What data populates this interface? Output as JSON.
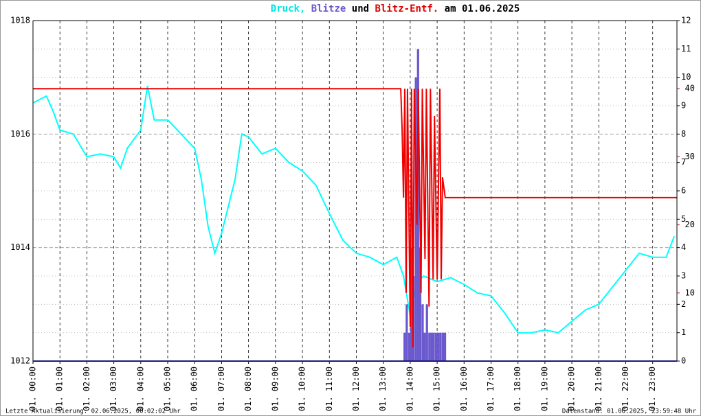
{
  "chart_data": {
    "type": "line",
    "title_parts": [
      {
        "text": "Druck,",
        "color": "#00e5e5"
      },
      {
        "text": "Blitze",
        "color": "#6a5acd"
      },
      {
        "text": "und",
        "color": "#000000"
      },
      {
        "text": "Blitz-Entf.",
        "color": "#dd0000"
      },
      {
        "text": "am 01.06.2025",
        "color": "#000000"
      }
    ],
    "footer_left": "Letzte Aktualisierung: 02.06.2025, 00:02:02 Uhr",
    "footer_right": "Datenstand: 01.06.2025, 23:59:48 Uhr",
    "xlim": [
      0,
      23.9
    ],
    "xticks": [
      {
        "value": 0,
        "label": "01. 00:00"
      },
      {
        "value": 1,
        "label": "01. 01:00"
      },
      {
        "value": 2,
        "label": "01. 02:00"
      },
      {
        "value": 3,
        "label": "01. 03:00"
      },
      {
        "value": 4,
        "label": "01. 04:00"
      },
      {
        "value": 5,
        "label": "01. 05:00"
      },
      {
        "value": 6,
        "label": "01. 06:00"
      },
      {
        "value": 7,
        "label": "01. 07:00"
      },
      {
        "value": 8,
        "label": "01. 08:00"
      },
      {
        "value": 9,
        "label": "01. 09:00"
      },
      {
        "value": 10,
        "label": "01. 10:00"
      },
      {
        "value": 11,
        "label": "01. 11:00"
      },
      {
        "value": 12,
        "label": "01. 12:00"
      },
      {
        "value": 13,
        "label": "01. 13:00"
      },
      {
        "value": 14,
        "label": "01. 14:00"
      },
      {
        "value": 15,
        "label": "01. 15:00"
      },
      {
        "value": 16,
        "label": "01. 16:00"
      },
      {
        "value": 17,
        "label": "01. 17:00"
      },
      {
        "value": 18,
        "label": "01. 18:00"
      },
      {
        "value": 19,
        "label": "01. 19:00"
      },
      {
        "value": 20,
        "label": "01. 20:00"
      },
      {
        "value": 21,
        "label": "01. 21:00"
      },
      {
        "value": 22,
        "label": "01. 22:00"
      },
      {
        "value": 23,
        "label": "01. 23:00"
      }
    ],
    "ylim": [
      1012,
      1018
    ],
    "yticks": [
      1012,
      1014,
      1016,
      1018
    ],
    "y2lim": [
      0,
      12
    ],
    "y2ticks": [
      0,
      1,
      2,
      3,
      4,
      5,
      6,
      7,
      8,
      9,
      10,
      11,
      12
    ],
    "y3lim": [
      0,
      50
    ],
    "y3ticks": [
      10,
      20,
      30,
      40
    ],
    "y3color": "#dd0000",
    "grid": true,
    "series": [
      {
        "type": "line",
        "axis": "y",
        "color": "#00ffff",
        "x": [
          0,
          0.5,
          0.75,
          1,
          1.5,
          2,
          2.5,
          3,
          3.25,
          3.5,
          4,
          4.25,
          4.5,
          5,
          5.5,
          6,
          6.25,
          6.5,
          6.75,
          7,
          7.5,
          7.75,
          8,
          8.5,
          9,
          9.5,
          10,
          10.5,
          11,
          11.5,
          12,
          12.5,
          13,
          13.5,
          13.75,
          14,
          14.25,
          14.5,
          15,
          15.5,
          16,
          16.5,
          17,
          17.5,
          18,
          18.5,
          19,
          19.5,
          20,
          20.5,
          21,
          21.5,
          22,
          22.5,
          23,
          23.5,
          23.8
        ],
        "values": [
          1016.55,
          1016.67,
          1016.4,
          1016.07,
          1016.0,
          1015.6,
          1015.65,
          1015.6,
          1015.4,
          1015.75,
          1016.07,
          1016.85,
          1016.25,
          1016.25,
          1016.0,
          1015.75,
          1015.2,
          1014.37,
          1013.9,
          1014.25,
          1015.2,
          1016.0,
          1015.95,
          1015.65,
          1015.75,
          1015.5,
          1015.35,
          1015.1,
          1014.6,
          1014.13,
          1013.9,
          1013.83,
          1013.7,
          1013.83,
          1013.5,
          1012.8,
          1013.4,
          1013.5,
          1013.4,
          1013.47,
          1013.35,
          1013.2,
          1013.15,
          1012.85,
          1012.5,
          1012.5,
          1012.55,
          1012.5,
          1012.7,
          1012.9,
          1013.0,
          1013.3,
          1013.6,
          1013.9,
          1013.83,
          1013.83,
          1014.2
        ]
      },
      {
        "type": "bar",
        "axis": "y2",
        "color": "#6a5acd",
        "width": 0.0833,
        "x": [
          13.75,
          13.83,
          13.92,
          14.0,
          14.08,
          14.17,
          14.25,
          14.33,
          14.42,
          14.5,
          14.58,
          14.67,
          14.75,
          14.83,
          14.92,
          15.0,
          15.08,
          15.17,
          15.25
        ],
        "values": [
          1,
          2,
          1,
          4,
          3,
          10,
          11,
          4,
          2,
          1,
          2,
          1,
          1,
          1,
          1,
          1,
          1,
          1,
          1
        ]
      },
      {
        "type": "line",
        "axis": "y3",
        "color": "#ee0000",
        "x": [
          0,
          13.65,
          13.7,
          13.75,
          13.8,
          13.85,
          13.9,
          14.0,
          14.05,
          14.1,
          14.15,
          14.25,
          14.3,
          14.4,
          14.45,
          14.55,
          14.6,
          14.7,
          14.75,
          14.85,
          14.9,
          15.0,
          15.1,
          15.15,
          15.2,
          15.3,
          23.9
        ],
        "values": [
          40,
          40,
          34,
          24,
          40,
          10,
          40,
          5,
          40,
          2,
          40,
          20,
          40,
          10,
          40,
          15,
          40,
          8,
          40,
          12,
          36,
          12,
          40,
          12,
          27,
          24,
          24
        ]
      }
    ]
  }
}
